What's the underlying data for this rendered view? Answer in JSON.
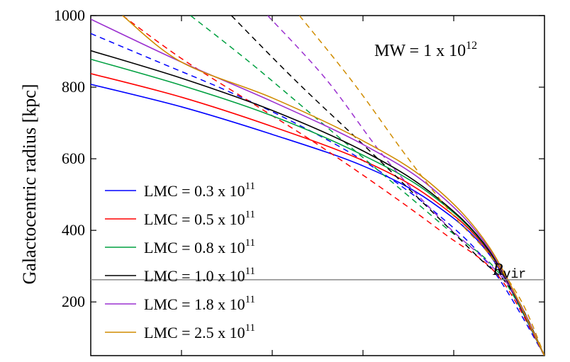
{
  "chart_data": {
    "type": "line",
    "ylabel": "Galactocentric radius [kpc]",
    "xlabel": "",
    "ylim": [
      50,
      1000
    ],
    "yticks": [
      200,
      400,
      600,
      800,
      1000
    ],
    "x_tick_count": 5,
    "annotation_main": "MW = 1 x 10",
    "annotation_main_exp": "12",
    "rvir_label": "R",
    "rvir_label_sub": "vir",
    "rvir_value": 262,
    "grid": false,
    "legend_position": "lower-left",
    "series": [
      {
        "name": "LMC = 0.3 x 10",
        "name_exp": "11",
        "color": "#0000ff",
        "solid": [
          [
            0,
            808
          ],
          [
            0.2,
            745
          ],
          [
            0.4,
            668
          ],
          [
            0.6,
            580
          ],
          [
            0.75,
            480
          ],
          [
            0.88,
            330
          ],
          [
            1.0,
            50
          ]
        ],
        "dashed": [
          [
            0,
            950
          ],
          [
            0.15,
            870
          ],
          [
            0.3,
            790
          ],
          [
            0.45,
            700
          ],
          [
            0.6,
            595
          ],
          [
            0.75,
            460
          ],
          [
            0.88,
            300
          ],
          [
            1.0,
            50
          ]
        ]
      },
      {
        "name": "LMC = 0.5 x 10",
        "name_exp": "11",
        "color": "#ff0000",
        "solid": [
          [
            0,
            838
          ],
          [
            0.2,
            772
          ],
          [
            0.4,
            690
          ],
          [
            0.6,
            595
          ],
          [
            0.75,
            490
          ],
          [
            0.88,
            335
          ],
          [
            1.0,
            50
          ]
        ],
        "dashed": [
          [
            0.07,
            1000
          ],
          [
            0.2,
            880
          ],
          [
            0.35,
            760
          ],
          [
            0.5,
            640
          ],
          [
            0.65,
            510
          ],
          [
            0.78,
            390
          ],
          [
            0.9,
            270
          ],
          [
            1.0,
            50
          ]
        ]
      },
      {
        "name": "LMC = 0.8 x 10",
        "name_exp": "11",
        "color": "#00a040",
        "solid": [
          [
            0,
            878
          ],
          [
            0.2,
            805
          ],
          [
            0.4,
            720
          ],
          [
            0.6,
            610
          ],
          [
            0.75,
            500
          ],
          [
            0.88,
            338
          ],
          [
            1.0,
            50
          ]
        ],
        "dashed": [
          [
            0.22,
            1000
          ],
          [
            0.35,
            870
          ],
          [
            0.5,
            710
          ],
          [
            0.65,
            550
          ],
          [
            0.78,
            410
          ],
          [
            0.9,
            280
          ],
          [
            1.0,
            50
          ]
        ]
      },
      {
        "name": "LMC = 1.0 x 10",
        "name_exp": "11",
        "color": "#000000",
        "solid": [
          [
            0,
            902
          ],
          [
            0.2,
            825
          ],
          [
            0.4,
            735
          ],
          [
            0.6,
            622
          ],
          [
            0.75,
            505
          ],
          [
            0.88,
            340
          ],
          [
            1.0,
            50
          ]
        ],
        "dashed": [
          [
            0.31,
            1000
          ],
          [
            0.45,
            820
          ],
          [
            0.6,
            640
          ],
          [
            0.73,
            480
          ],
          [
            0.85,
            330
          ],
          [
            0.93,
            230
          ],
          [
            1.0,
            50
          ]
        ]
      },
      {
        "name": "LMC = 1.8 x 10",
        "name_exp": "11",
        "color": "#9b30d0",
        "solid": [
          [
            0,
            990
          ],
          [
            0.2,
            870
          ],
          [
            0.4,
            760
          ],
          [
            0.6,
            640
          ],
          [
            0.75,
            520
          ],
          [
            0.88,
            345
          ],
          [
            1.0,
            50
          ]
        ],
        "dashed": [
          [
            0.39,
            1000
          ],
          [
            0.52,
            820
          ],
          [
            0.65,
            600
          ],
          [
            0.78,
            420
          ],
          [
            0.88,
            305
          ],
          [
            0.94,
            210
          ],
          [
            1.0,
            50
          ]
        ]
      },
      {
        "name": "LMC = 2.5 x 10",
        "name_exp": "11",
        "color": "#d08c00",
        "solid": [
          [
            0.07,
            1000
          ],
          [
            0.2,
            870
          ],
          [
            0.4,
            770
          ],
          [
            0.6,
            650
          ],
          [
            0.75,
            530
          ],
          [
            0.88,
            350
          ],
          [
            1.0,
            50
          ]
        ],
        "dashed": [
          [
            0.46,
            1000
          ],
          [
            0.58,
            810
          ],
          [
            0.7,
            600
          ],
          [
            0.8,
            440
          ],
          [
            0.88,
            330
          ],
          [
            0.95,
            200
          ],
          [
            1.0,
            50
          ]
        ]
      }
    ]
  }
}
